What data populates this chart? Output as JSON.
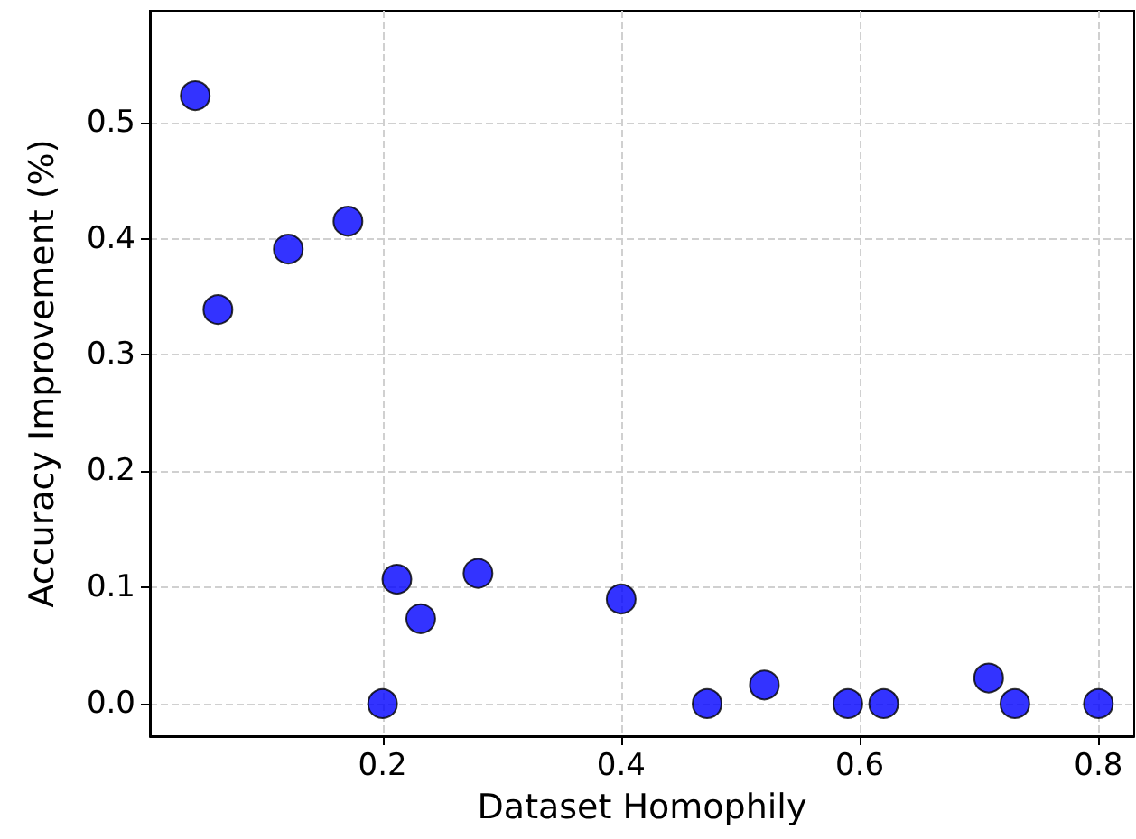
{
  "chart_data": {
    "type": "scatter",
    "xlabel": "Dataset Homophily",
    "ylabel": "Accuracy Improvement (%)",
    "x": [
      0.043,
      0.062,
      0.121,
      0.171,
      0.2,
      0.212,
      0.232,
      0.28,
      0.4,
      0.472,
      0.52,
      0.59,
      0.62,
      0.708,
      0.73,
      0.8
    ],
    "series": [
      {
        "color": "#0000ff",
        "values": [
          0.523,
          0.339,
          0.391,
          0.415,
          0,
          0.107,
          0.073,
          0.112,
          0.09,
          0,
          0.016,
          0,
          0,
          0.022,
          0,
          0
        ]
      }
    ],
    "xlim": [
      0.005,
      0.83
    ],
    "ylim": [
      -0.028,
      0.596
    ],
    "xticks": [
      0.2,
      0.4,
      0.6,
      0.8
    ],
    "yticks": [
      {
        "value": 0,
        "label": "0.0"
      },
      0.1,
      0.2,
      0.3,
      0.4,
      0.5
    ],
    "grid": true,
    "marker": "circle"
  }
}
